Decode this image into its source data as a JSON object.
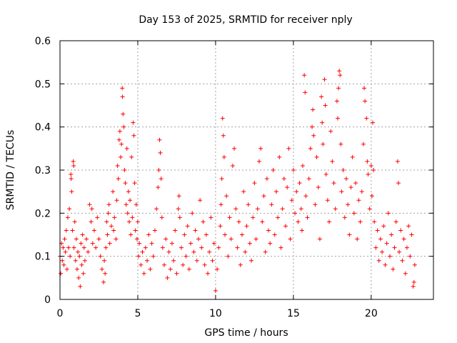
{
  "chart_data": {
    "type": "scatter",
    "title": "Day 153 of 2025, SRMTID for receiver nply",
    "xlabel": "GPS time / hours",
    "ylabel": "SRMTID / TECUs",
    "xlim": [
      0,
      24
    ],
    "ylim": [
      0,
      0.6
    ],
    "xticks": [
      0,
      5,
      10,
      15,
      20
    ],
    "xtick_labels": [
      "0",
      "5",
      "10",
      "15",
      "20"
    ],
    "yticks": [
      0,
      0.1,
      0.2,
      0.3,
      0.4,
      0.5,
      0.6
    ],
    "ytick_labels": [
      "0",
      "0.1",
      "0.2",
      "0.3",
      "0.4",
      "0.5",
      "0.6"
    ],
    "grid": true,
    "marker": "+",
    "color": "#ff0000",
    "series": [
      {
        "name": "SRMTID",
        "points": [
          [
            0.0,
            0.1
          ],
          [
            0.05,
            0.06
          ],
          [
            0.1,
            0.13
          ],
          [
            0.15,
            0.09
          ],
          [
            0.2,
            0.12
          ],
          [
            0.25,
            0.08
          ],
          [
            0.3,
            0.14
          ],
          [
            0.35,
            0.11
          ],
          [
            0.4,
            0.16
          ],
          [
            0.45,
            0.07
          ],
          [
            0.5,
            0.19
          ],
          [
            0.55,
            0.12
          ],
          [
            0.6,
            0.21
          ],
          [
            0.65,
            0.1
          ],
          [
            0.7,
            0.29
          ],
          [
            0.72,
            0.28
          ],
          [
            0.75,
            0.25
          ],
          [
            0.8,
            0.16
          ],
          [
            0.85,
            0.32
          ],
          [
            0.88,
            0.31
          ],
          [
            0.9,
            0.12
          ],
          [
            0.95,
            0.18
          ],
          [
            1.0,
            0.09
          ],
          [
            1.05,
            0.14
          ],
          [
            1.1,
            0.07
          ],
          [
            1.15,
            0.11
          ],
          [
            1.2,
            0.05
          ],
          [
            1.25,
            0.1
          ],
          [
            1.3,
            0.03
          ],
          [
            1.35,
            0.13
          ],
          [
            1.4,
            0.08
          ],
          [
            1.45,
            0.15
          ],
          [
            1.5,
            0.06
          ],
          [
            1.55,
            0.12
          ],
          [
            1.6,
            0.09
          ],
          [
            1.7,
            0.14
          ],
          [
            1.8,
            0.11
          ],
          [
            1.9,
            0.22
          ],
          [
            2.0,
            0.18
          ],
          [
            2.05,
            0.21
          ],
          [
            2.1,
            0.13
          ],
          [
            2.2,
            0.16
          ],
          [
            2.3,
            0.12
          ],
          [
            2.4,
            0.19
          ],
          [
            2.5,
            0.14
          ],
          [
            2.6,
            0.1
          ],
          [
            2.7,
            0.07
          ],
          [
            2.8,
            0.04
          ],
          [
            2.85,
            0.09
          ],
          [
            2.9,
            0.06
          ],
          [
            2.95,
            0.12
          ],
          [
            3.0,
            0.18
          ],
          [
            3.05,
            0.15
          ],
          [
            3.1,
            0.2
          ],
          [
            3.15,
            0.22
          ],
          [
            3.2,
            0.13
          ],
          [
            3.3,
            0.17
          ],
          [
            3.4,
            0.25
          ],
          [
            3.45,
            0.16
          ],
          [
            3.5,
            0.19
          ],
          [
            3.6,
            0.14
          ],
          [
            3.65,
            0.23
          ],
          [
            3.7,
            0.31
          ],
          [
            3.75,
            0.28
          ],
          [
            3.8,
            0.37
          ],
          [
            3.85,
            0.39
          ],
          [
            3.9,
            0.33
          ],
          [
            3.95,
            0.36
          ],
          [
            4.0,
            0.49
          ],
          [
            4.02,
            0.47
          ],
          [
            4.05,
            0.43
          ],
          [
            4.1,
            0.4
          ],
          [
            4.15,
            0.3
          ],
          [
            4.2,
            0.27
          ],
          [
            4.25,
            0.22
          ],
          [
            4.3,
            0.35
          ],
          [
            4.35,
            0.2
          ],
          [
            4.4,
            0.25
          ],
          [
            4.45,
            0.18
          ],
          [
            4.5,
            0.23
          ],
          [
            4.55,
            0.15
          ],
          [
            4.6,
            0.33
          ],
          [
            4.65,
            0.19
          ],
          [
            4.7,
            0.41
          ],
          [
            4.75,
            0.38
          ],
          [
            4.8,
            0.27
          ],
          [
            4.85,
            0.16
          ],
          [
            4.9,
            0.22
          ],
          [
            4.95,
            0.14
          ],
          [
            5.0,
            0.18
          ],
          [
            5.05,
            0.1
          ],
          [
            5.1,
            0.13
          ],
          [
            5.2,
            0.08
          ],
          [
            5.3,
            0.11
          ],
          [
            5.4,
            0.06
          ],
          [
            5.5,
            0.12
          ],
          [
            5.6,
            0.09
          ],
          [
            5.7,
            0.15
          ],
          [
            5.8,
            0.07
          ],
          [
            5.9,
            0.13
          ],
          [
            6.0,
            0.1
          ],
          [
            6.1,
            0.16
          ],
          [
            6.2,
            0.21
          ],
          [
            6.3,
            0.26
          ],
          [
            6.35,
            0.3
          ],
          [
            6.4,
            0.37
          ],
          [
            6.45,
            0.34
          ],
          [
            6.5,
            0.28
          ],
          [
            6.55,
            0.19
          ],
          [
            6.6,
            0.12
          ],
          [
            6.7,
            0.08
          ],
          [
            6.8,
            0.14
          ],
          [
            6.9,
            0.05
          ],
          [
            7.0,
            0.11
          ],
          [
            7.1,
            0.07
          ],
          [
            7.2,
            0.13
          ],
          [
            7.3,
            0.09
          ],
          [
            7.4,
            0.16
          ],
          [
            7.5,
            0.06
          ],
          [
            7.6,
            0.21
          ],
          [
            7.65,
            0.24
          ],
          [
            7.7,
            0.19
          ],
          [
            7.8,
            0.12
          ],
          [
            7.9,
            0.08
          ],
          [
            8.0,
            0.15
          ],
          [
            8.1,
            0.1
          ],
          [
            8.2,
            0.17
          ],
          [
            8.3,
            0.07
          ],
          [
            8.4,
            0.13
          ],
          [
            8.5,
            0.2
          ],
          [
            8.6,
            0.11
          ],
          [
            8.7,
            0.16
          ],
          [
            8.8,
            0.09
          ],
          [
            8.9,
            0.14
          ],
          [
            9.0,
            0.23
          ],
          [
            9.1,
            0.12
          ],
          [
            9.2,
            0.18
          ],
          [
            9.3,
            0.08
          ],
          [
            9.4,
            0.15
          ],
          [
            9.5,
            0.06
          ],
          [
            9.6,
            0.11
          ],
          [
            9.7,
            0.19
          ],
          [
            9.8,
            0.09
          ],
          [
            9.9,
            0.13
          ],
          [
            10.0,
            0.02
          ],
          [
            10.1,
            0.07
          ],
          [
            10.2,
            0.12
          ],
          [
            10.3,
            0.17
          ],
          [
            10.35,
            0.22
          ],
          [
            10.4,
            0.28
          ],
          [
            10.45,
            0.42
          ],
          [
            10.5,
            0.38
          ],
          [
            10.55,
            0.33
          ],
          [
            10.6,
            0.15
          ],
          [
            10.7,
            0.24
          ],
          [
            10.8,
            0.1
          ],
          [
            10.9,
            0.19
          ],
          [
            11.0,
            0.14
          ],
          [
            11.1,
            0.31
          ],
          [
            11.2,
            0.35
          ],
          [
            11.3,
            0.21
          ],
          [
            11.4,
            0.12
          ],
          [
            11.5,
            0.18
          ],
          [
            11.6,
            0.08
          ],
          [
            11.7,
            0.15
          ],
          [
            11.8,
            0.25
          ],
          [
            11.9,
            0.11
          ],
          [
            12.0,
            0.17
          ],
          [
            12.1,
            0.22
          ],
          [
            12.2,
            0.13
          ],
          [
            12.3,
            0.09
          ],
          [
            12.4,
            0.19
          ],
          [
            12.5,
            0.27
          ],
          [
            12.6,
            0.14
          ],
          [
            12.7,
            0.21
          ],
          [
            12.8,
            0.32
          ],
          [
            12.9,
            0.35
          ],
          [
            13.0,
            0.18
          ],
          [
            13.1,
            0.24
          ],
          [
            13.2,
            0.11
          ],
          [
            13.3,
            0.28
          ],
          [
            13.4,
            0.16
          ],
          [
            13.5,
            0.13
          ],
          [
            13.6,
            0.22
          ],
          [
            13.7,
            0.3
          ],
          [
            13.8,
            0.15
          ],
          [
            13.9,
            0.25
          ],
          [
            14.0,
            0.19
          ],
          [
            14.1,
            0.33
          ],
          [
            14.2,
            0.12
          ],
          [
            14.3,
            0.21
          ],
          [
            14.4,
            0.28
          ],
          [
            14.5,
            0.17
          ],
          [
            14.6,
            0.26
          ],
          [
            14.7,
            0.35
          ],
          [
            14.8,
            0.14
          ],
          [
            14.9,
            0.23
          ],
          [
            15.0,
            0.3
          ],
          [
            15.1,
            0.2
          ],
          [
            15.2,
            0.25
          ],
          [
            15.3,
            0.18
          ],
          [
            15.4,
            0.27
          ],
          [
            15.5,
            0.21
          ],
          [
            15.55,
            0.16
          ],
          [
            15.6,
            0.31
          ],
          [
            15.7,
            0.52
          ],
          [
            15.75,
            0.48
          ],
          [
            15.8,
            0.24
          ],
          [
            15.9,
            0.19
          ],
          [
            16.0,
            0.28
          ],
          [
            16.1,
            0.35
          ],
          [
            16.2,
            0.4
          ],
          [
            16.25,
            0.44
          ],
          [
            16.3,
            0.38
          ],
          [
            16.4,
            0.22
          ],
          [
            16.5,
            0.33
          ],
          [
            16.6,
            0.26
          ],
          [
            16.7,
            0.14
          ],
          [
            16.8,
            0.47
          ],
          [
            16.85,
            0.41
          ],
          [
            16.9,
            0.36
          ],
          [
            17.0,
            0.51
          ],
          [
            17.05,
            0.45
          ],
          [
            17.1,
            0.29
          ],
          [
            17.2,
            0.23
          ],
          [
            17.3,
            0.18
          ],
          [
            17.4,
            0.39
          ],
          [
            17.5,
            0.32
          ],
          [
            17.6,
            0.27
          ],
          [
            17.7,
            0.21
          ],
          [
            17.8,
            0.46
          ],
          [
            17.85,
            0.42
          ],
          [
            17.9,
            0.49
          ],
          [
            17.95,
            0.53
          ],
          [
            18.0,
            0.52
          ],
          [
            18.05,
            0.36
          ],
          [
            18.1,
            0.25
          ],
          [
            18.2,
            0.3
          ],
          [
            18.3,
            0.19
          ],
          [
            18.4,
            0.28
          ],
          [
            18.5,
            0.22
          ],
          [
            18.6,
            0.15
          ],
          [
            18.7,
            0.26
          ],
          [
            18.8,
            0.33
          ],
          [
            18.9,
            0.2
          ],
          [
            19.0,
            0.27
          ],
          [
            19.1,
            0.14
          ],
          [
            19.2,
            0.23
          ],
          [
            19.3,
            0.18
          ],
          [
            19.4,
            0.25
          ],
          [
            19.5,
            0.36
          ],
          [
            19.55,
            0.49
          ],
          [
            19.6,
            0.46
          ],
          [
            19.7,
            0.42
          ],
          [
            19.75,
            0.32
          ],
          [
            19.8,
            0.29
          ],
          [
            19.9,
            0.21
          ],
          [
            20.0,
            0.31
          ],
          [
            20.05,
            0.24
          ],
          [
            20.1,
            0.41
          ],
          [
            20.15,
            0.3
          ],
          [
            20.2,
            0.18
          ],
          [
            20.3,
            0.12
          ],
          [
            20.4,
            0.16
          ],
          [
            20.5,
            0.09
          ],
          [
            20.6,
            0.14
          ],
          [
            20.7,
            0.11
          ],
          [
            20.8,
            0.17
          ],
          [
            20.9,
            0.08
          ],
          [
            21.0,
            0.13
          ],
          [
            21.1,
            0.2
          ],
          [
            21.2,
            0.1
          ],
          [
            21.3,
            0.15
          ],
          [
            21.4,
            0.07
          ],
          [
            21.5,
            0.12
          ],
          [
            21.6,
            0.18
          ],
          [
            21.7,
            0.32
          ],
          [
            21.75,
            0.27
          ],
          [
            21.8,
            0.11
          ],
          [
            21.9,
            0.16
          ],
          [
            22.0,
            0.09
          ],
          [
            22.1,
            0.14
          ],
          [
            22.2,
            0.06
          ],
          [
            22.3,
            0.12
          ],
          [
            22.4,
            0.17
          ],
          [
            22.5,
            0.1
          ],
          [
            22.6,
            0.15
          ],
          [
            22.7,
            0.03
          ],
          [
            22.75,
            0.04
          ],
          [
            22.8,
            0.08
          ]
        ]
      }
    ]
  }
}
